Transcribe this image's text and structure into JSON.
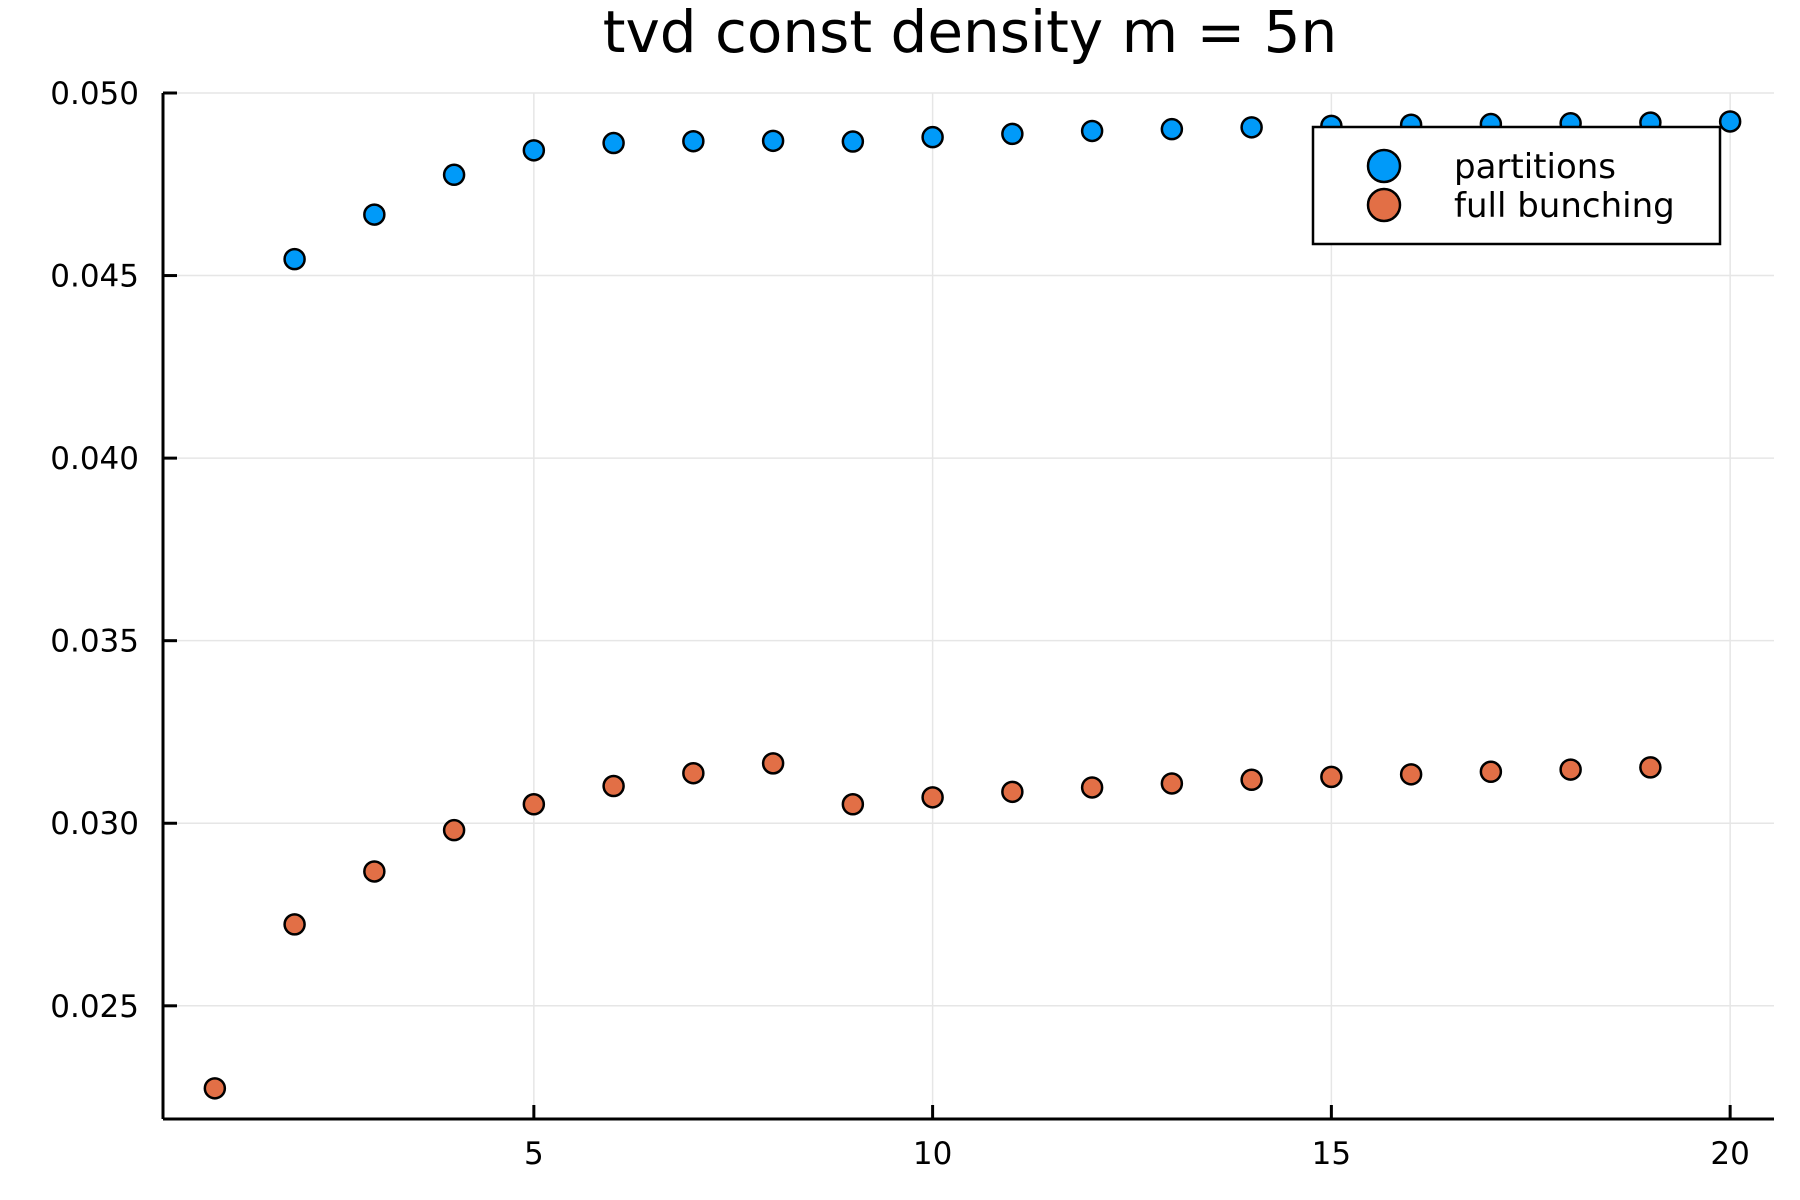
{
  "chart_data": {
    "type": "scatter",
    "title": "tvd const density m = 5n",
    "xlabel": "",
    "ylabel": "",
    "xlim": [
      0.35,
      20.55
    ],
    "ylim": [
      0.0219,
      0.05
    ],
    "xticks": [
      5,
      10,
      15,
      20
    ],
    "xtick_labels": [
      "5",
      "10",
      "15",
      "20"
    ],
    "yticks": [
      0.025,
      0.03,
      0.035,
      0.04,
      0.045,
      0.05
    ],
    "ytick_labels": [
      "0.025",
      "0.030",
      "0.035",
      "0.040",
      "0.045",
      "0.050"
    ],
    "grid": true,
    "legend_position": "top-right",
    "series": [
      {
        "name": "partitions",
        "color": "#009af9",
        "x": [
          2,
          3,
          4,
          5,
          6,
          7,
          8,
          9,
          10,
          11,
          12,
          13,
          14,
          15,
          16,
          17,
          18,
          19,
          20
        ],
        "values": [
          0.04545,
          0.04667,
          0.04776,
          0.04843,
          0.04863,
          0.04868,
          0.04869,
          0.04867,
          0.04879,
          0.04888,
          0.04896,
          0.04901,
          0.04906,
          0.0491,
          0.04913,
          0.04915,
          0.04917,
          0.04919,
          0.04922
        ]
      },
      {
        "name": "full bunching",
        "color": "#e26f46",
        "x": [
          1,
          2,
          3,
          4,
          5,
          6,
          7,
          8,
          9,
          10,
          11,
          12,
          13,
          14,
          15,
          16,
          17,
          18,
          19
        ],
        "values": [
          0.02274,
          0.02723,
          0.02868,
          0.02981,
          0.03052,
          0.03102,
          0.03137,
          0.03164,
          0.03052,
          0.03071,
          0.03086,
          0.03098,
          0.03109,
          0.03119,
          0.03127,
          0.03134,
          0.03141,
          0.03147,
          0.03153
        ]
      }
    ]
  }
}
